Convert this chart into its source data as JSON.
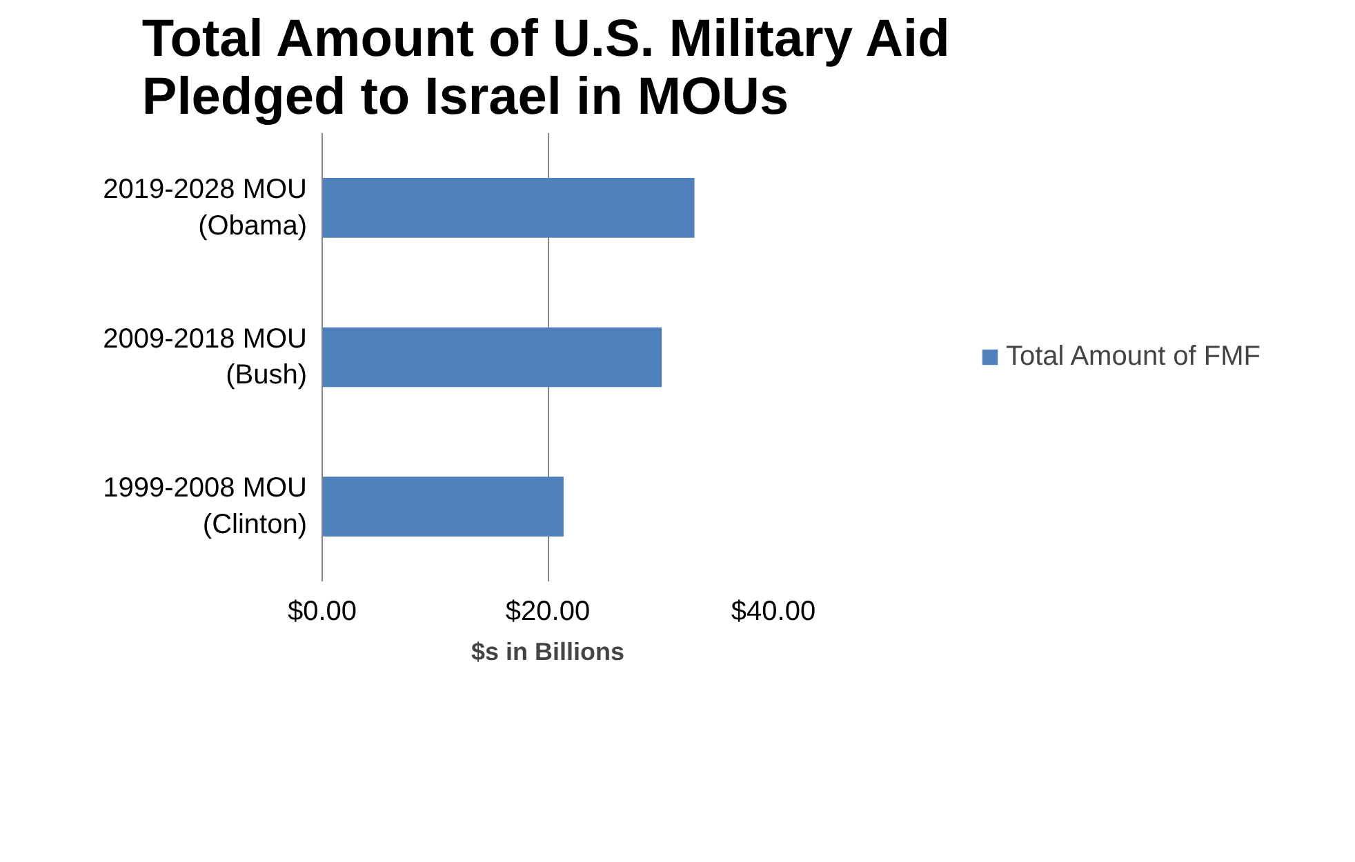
{
  "chart_data": {
    "type": "bar",
    "orientation": "horizontal",
    "title": "Total Amount of U.S. Military Aid Pledged to Israel in MOUs",
    "xlabel": "$s in Billions",
    "categories": [
      "2019-2028 MOU (Obama)",
      "2009-2018 MOU (Bush)",
      "1999-2008 MOU (Clinton)"
    ],
    "series": [
      {
        "name": "Total Amount of FMF",
        "color": "#4f81bd",
        "values": [
          33,
          30.1,
          21.4
        ]
      }
    ],
    "xlim": [
      0,
      40
    ],
    "xticks": [
      {
        "value": 0,
        "label": "$0.00"
      },
      {
        "value": 20,
        "label": "$20.00"
      },
      {
        "value": 40,
        "label": "$40.00"
      }
    ],
    "grid": "x",
    "legend": "right"
  }
}
